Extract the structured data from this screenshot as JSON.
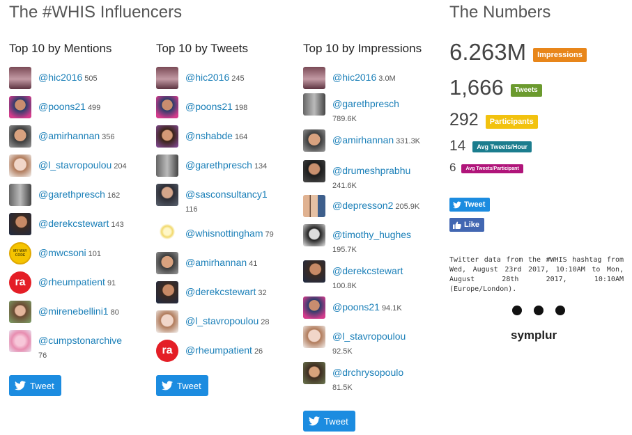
{
  "influencers_heading": "The #WHIS Influencers",
  "numbers_heading": "The Numbers",
  "columns": {
    "mentions": {
      "title": "Top 10 by Mentions",
      "items": [
        {
          "handle": "@hic2016",
          "count": "505"
        },
        {
          "handle": "@poons21",
          "count": "499"
        },
        {
          "handle": "@amirhannan",
          "count": "356"
        },
        {
          "handle": "@l_stavropoulou",
          "count": "204"
        },
        {
          "handle": "@garethpresch",
          "count": "162"
        },
        {
          "handle": "@derekcstewart",
          "count": "143"
        },
        {
          "handle": "@mwcsoni",
          "count": "101"
        },
        {
          "handle": "@rheumpatient",
          "count": "91"
        },
        {
          "handle": "@mirenebellini1",
          "count": "80"
        },
        {
          "handle": "@cumpstonarchive",
          "count": "76"
        }
      ]
    },
    "tweets": {
      "title": "Top 10 by Tweets",
      "items": [
        {
          "handle": "@hic2016",
          "count": "245"
        },
        {
          "handle": "@poons21",
          "count": "198"
        },
        {
          "handle": "@nshabde",
          "count": "164"
        },
        {
          "handle": "@garethpresch",
          "count": "134"
        },
        {
          "handle": "@sasconsultancy1",
          "count": "116"
        },
        {
          "handle": "@whisnottingham",
          "count": "79"
        },
        {
          "handle": "@amirhannan",
          "count": "41"
        },
        {
          "handle": "@derekcstewart",
          "count": "32"
        },
        {
          "handle": "@l_stavropoulou",
          "count": "28"
        },
        {
          "handle": "@rheumpatient",
          "count": "26"
        }
      ]
    },
    "impressions": {
      "title": "Top 10 by Impressions",
      "items": [
        {
          "handle": "@hic2016",
          "count": "3.0M"
        },
        {
          "handle": "@garethpresch",
          "count": "789.6K"
        },
        {
          "handle": "@amirhannan",
          "count": "331.3K"
        },
        {
          "handle": "@drumeshprabhu",
          "count": "241.6K"
        },
        {
          "handle": "@depresson2",
          "count": "205.9K"
        },
        {
          "handle": "@timothy_hughes",
          "count": "195.7K"
        },
        {
          "handle": "@derekcstewart",
          "count": "100.8K"
        },
        {
          "handle": "@poons21",
          "count": "94.1K"
        },
        {
          "handle": "@l_stavropoulou",
          "count": "92.5K"
        },
        {
          "handle": "@drchrysopoulo",
          "count": "81.5K"
        }
      ]
    }
  },
  "avatar_text": {
    "ra": "ra",
    "code": "MY WAY CODE"
  },
  "tweet_label": "Tweet",
  "like_label": "Like",
  "stats": [
    {
      "value": "6.263M",
      "label": "Impressions",
      "color": "#e8861a"
    },
    {
      "value": "1,666",
      "label": "Tweets",
      "color": "#6b9a2e"
    },
    {
      "value": "292",
      "label": "Participants",
      "color": "#f2c20f"
    },
    {
      "value": "14",
      "label": "Avg Tweets/Hour",
      "color": "#1b7d8e"
    },
    {
      "value": "6",
      "label": "Avg Tweets/Participant",
      "color": "#b0157a"
    }
  ],
  "info_text": "Twitter data from the #WHIS hashtag from Wed, August 23rd 2017, 10:10AM to Mon, August 28th 2017, 10:10AM (Europe/London).",
  "brand": "symplur",
  "colors": {
    "link": "#1a7fb8",
    "twitter_blue": "#1c8ce0",
    "facebook_blue": "#4267b2"
  }
}
